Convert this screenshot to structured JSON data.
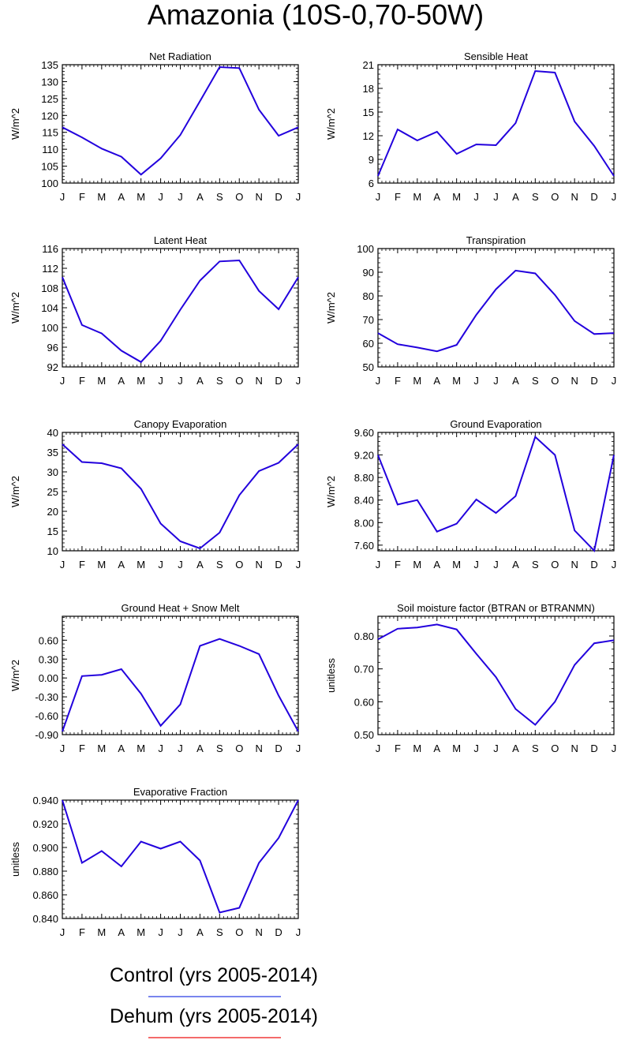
{
  "page_title": "Amazonia (10S-0,70-50W)",
  "legend": [
    {
      "label": "Control (yrs 2005-2014)",
      "color": "#4d5de8"
    },
    {
      "label": "Dehum (yrs 2005-2014)",
      "color": "#f03a3a"
    }
  ],
  "colors": {
    "series_line": "#2200dd",
    "axis": "#000000"
  },
  "chart_data": [
    {
      "type": "line",
      "title": "Net Radiation",
      "xlabel": "",
      "ylabel": "W/m^2",
      "categories": [
        "J",
        "F",
        "M",
        "A",
        "M",
        "J",
        "J",
        "A",
        "S",
        "O",
        "N",
        "D",
        "J"
      ],
      "yticks": [
        "100",
        "105",
        "110",
        "115",
        "120",
        "125",
        "130",
        "135"
      ],
      "ylim": [
        100,
        135
      ],
      "series": [
        {
          "name": "Control",
          "values": [
            116.5,
            113.5,
            110.2,
            107.8,
            102.5,
            107.3,
            114.2,
            124.2,
            134.3,
            134.0,
            121.7,
            114.0,
            116.5
          ]
        }
      ]
    },
    {
      "type": "line",
      "title": "Sensible Heat",
      "xlabel": "",
      "ylabel": "W/m^2",
      "categories": [
        "J",
        "F",
        "M",
        "A",
        "M",
        "J",
        "J",
        "A",
        "S",
        "O",
        "N",
        "D",
        "J"
      ],
      "yticks": [
        "6",
        "9",
        "12",
        "15",
        "18",
        "21"
      ],
      "ylim": [
        6,
        21
      ],
      "series": [
        {
          "name": "Control",
          "values": [
            6.9,
            12.8,
            11.4,
            12.5,
            9.7,
            10.9,
            10.8,
            13.6,
            20.2,
            20.0,
            13.8,
            10.7,
            6.9
          ]
        }
      ]
    },
    {
      "type": "line",
      "title": "Latent Heat",
      "xlabel": "",
      "ylabel": "W/m^2",
      "categories": [
        "J",
        "F",
        "M",
        "A",
        "M",
        "J",
        "J",
        "A",
        "S",
        "O",
        "N",
        "D",
        "J"
      ],
      "yticks": [
        "92",
        "96",
        "100",
        "104",
        "108",
        "112",
        "116"
      ],
      "ylim": [
        92,
        116
      ],
      "series": [
        {
          "name": "Control",
          "values": [
            110.2,
            100.5,
            98.8,
            95.3,
            93.0,
            97.3,
            103.6,
            109.5,
            113.4,
            113.6,
            107.4,
            103.7,
            110.2
          ]
        }
      ]
    },
    {
      "type": "line",
      "title": "Transpiration",
      "xlabel": "",
      "ylabel": "W/m^2",
      "categories": [
        "J",
        "F",
        "M",
        "A",
        "M",
        "J",
        "J",
        "A",
        "S",
        "O",
        "N",
        "D",
        "J"
      ],
      "yticks": [
        "50",
        "60",
        "70",
        "80",
        "90",
        "100"
      ],
      "ylim": [
        50,
        100
      ],
      "series": [
        {
          "name": "Control",
          "values": [
            64.3,
            59.6,
            58.2,
            56.6,
            59.3,
            72.0,
            82.8,
            90.7,
            89.5,
            80.4,
            69.4,
            63.9,
            64.3
          ]
        }
      ]
    },
    {
      "type": "line",
      "title": "Canopy Evaporation",
      "xlabel": "",
      "ylabel": "W/m^2",
      "categories": [
        "J",
        "F",
        "M",
        "A",
        "M",
        "J",
        "J",
        "A",
        "S",
        "O",
        "N",
        "D",
        "J"
      ],
      "yticks": [
        "10",
        "15",
        "20",
        "25",
        "30",
        "35",
        "40"
      ],
      "ylim": [
        10,
        40
      ],
      "series": [
        {
          "name": "Control",
          "values": [
            37.0,
            32.5,
            32.2,
            30.9,
            25.7,
            16.9,
            12.4,
            10.6,
            14.6,
            24.1,
            30.2,
            32.3,
            37.0
          ]
        }
      ]
    },
    {
      "type": "line",
      "title": "Ground Evaporation",
      "xlabel": "",
      "ylabel": "W/m^2",
      "categories": [
        "J",
        "F",
        "M",
        "A",
        "M",
        "J",
        "J",
        "A",
        "S",
        "O",
        "N",
        "D",
        "J"
      ],
      "yticks": [
        "7.60",
        "8.00",
        "8.40",
        "8.80",
        "9.20",
        "9.60"
      ],
      "ylim": [
        7.5,
        9.6
      ],
      "series": [
        {
          "name": "Control",
          "values": [
            9.2,
            8.32,
            8.4,
            7.84,
            7.98,
            8.41,
            8.17,
            8.47,
            9.52,
            9.2,
            7.86,
            7.5,
            9.2
          ]
        }
      ]
    },
    {
      "type": "line",
      "title": "Ground Heat + Snow Melt",
      "xlabel": "",
      "ylabel": "W/m^2",
      "categories": [
        "J",
        "F",
        "M",
        "A",
        "M",
        "J",
        "J",
        "A",
        "S",
        "O",
        "N",
        "D",
        "J"
      ],
      "yticks": [
        "-0.90",
        "-0.60",
        "-0.30",
        "0.00",
        "0.30",
        "0.60"
      ],
      "ylim": [
        -0.9,
        0.98
      ],
      "series": [
        {
          "name": "Control",
          "values": [
            -0.85,
            0.03,
            0.05,
            0.14,
            -0.25,
            -0.76,
            -0.42,
            0.51,
            0.62,
            0.51,
            0.38,
            -0.28,
            -0.85
          ]
        }
      ]
    },
    {
      "type": "line",
      "title": "Soil moisture factor (BTRAN or BTRANMN)",
      "xlabel": "",
      "ylabel": "unitless",
      "categories": [
        "J",
        "F",
        "M",
        "A",
        "M",
        "J",
        "J",
        "A",
        "S",
        "O",
        "N",
        "D",
        "J"
      ],
      "yticks": [
        "0.50",
        "0.60",
        "0.70",
        "0.80"
      ],
      "ylim": [
        0.5,
        0.86
      ],
      "series": [
        {
          "name": "Control",
          "values": [
            0.79,
            0.822,
            0.826,
            0.835,
            0.82,
            0.746,
            0.675,
            0.578,
            0.53,
            0.6,
            0.712,
            0.778,
            0.787
          ]
        }
      ]
    },
    {
      "type": "line",
      "title": "Evaporative Fraction",
      "xlabel": "",
      "ylabel": "unitless",
      "categories": [
        "J",
        "F",
        "M",
        "A",
        "M",
        "J",
        "J",
        "A",
        "S",
        "O",
        "N",
        "D",
        "J"
      ],
      "yticks": [
        "0.840",
        "0.860",
        "0.880",
        "0.900",
        "0.920",
        "0.940"
      ],
      "ylim": [
        0.84,
        0.94
      ],
      "series": [
        {
          "name": "Control",
          "values": [
            0.94,
            0.887,
            0.897,
            0.884,
            0.905,
            0.899,
            0.905,
            0.889,
            0.845,
            0.849,
            0.887,
            0.908,
            0.94
          ]
        }
      ]
    }
  ]
}
